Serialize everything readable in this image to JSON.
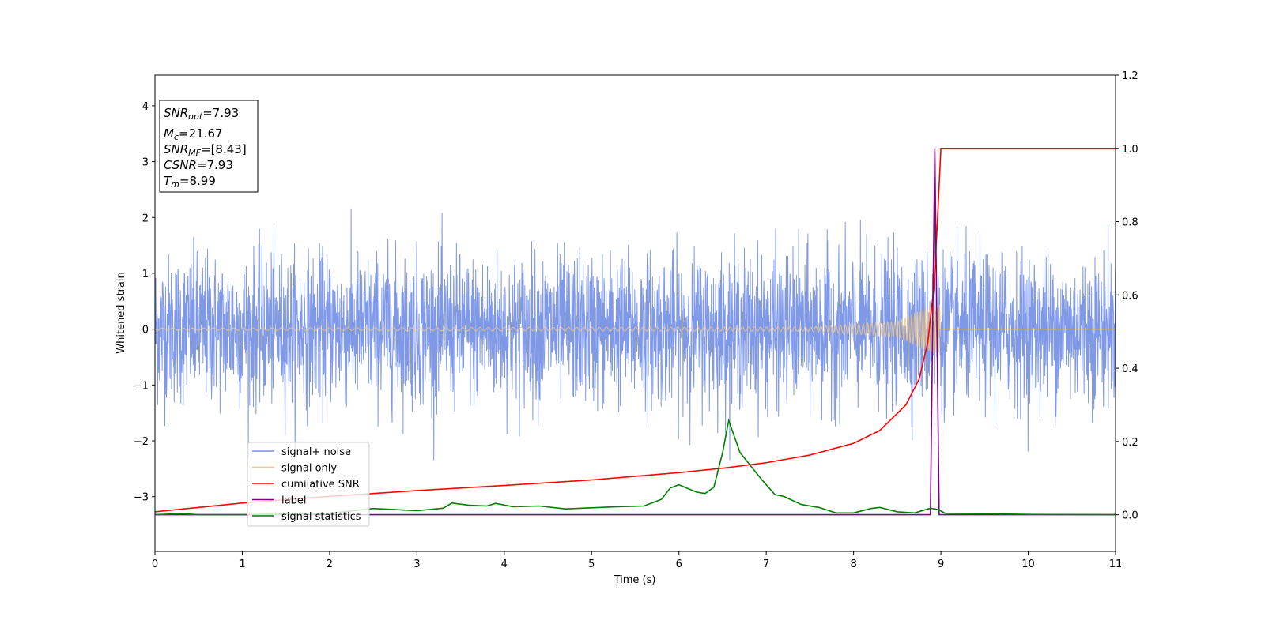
{
  "chart_data": {
    "type": "line",
    "xlabel": "Time (s)",
    "ylabel": "Whitened strain",
    "xlim": [
      0,
      11
    ],
    "ylim_left": [
      -3.98,
      4.55
    ],
    "ylim_right": [
      -0.1,
      1.2
    ],
    "x_ticks": [
      "0",
      "1",
      "2",
      "3",
      "4",
      "5",
      "6",
      "7",
      "8",
      "9",
      "10",
      "11"
    ],
    "y_left_ticks": [
      "4",
      "3",
      "2",
      "1",
      "0",
      "−1",
      "−2",
      "−3"
    ],
    "y_left_tick_values": [
      4,
      3,
      2,
      1,
      0,
      -1,
      -2,
      -3
    ],
    "y_right_ticks": [
      "1.2",
      "1.0",
      "0.8",
      "0.6",
      "0.4",
      "0.2",
      "0.0"
    ],
    "y_right_tick_values": [
      1.2,
      1.0,
      0.8,
      0.6,
      0.4,
      0.2,
      0.0
    ],
    "grid": false,
    "legend_position": "lower-left",
    "series": [
      {
        "name": "signal+ noise",
        "axis": "left",
        "color": "#7994e6",
        "description_values": "gaussian noise, amplitude roughly within ±2, with a few spikes near 2.3 and -2.3",
        "envelope": 1.2
      },
      {
        "name": "signal only",
        "axis": "left",
        "color": "#f5c77a",
        "chirp_end": 8.99,
        "amplitude_points": [
          [
            0,
            0.02
          ],
          [
            7.5,
            0.04
          ],
          [
            8.5,
            0.14
          ],
          [
            8.85,
            0.4
          ],
          [
            8.99,
            0.5
          ]
        ]
      },
      {
        "name": "cumilative SNR",
        "axis": "right",
        "color": "#ff0000",
        "points": [
          [
            0,
            0.008
          ],
          [
            1,
            0.032
          ],
          [
            2,
            0.05
          ],
          [
            3,
            0.066
          ],
          [
            4,
            0.08
          ],
          [
            5,
            0.095
          ],
          [
            6,
            0.115
          ],
          [
            6.5,
            0.127
          ],
          [
            7,
            0.142
          ],
          [
            7.5,
            0.163
          ],
          [
            8,
            0.195
          ],
          [
            8.3,
            0.23
          ],
          [
            8.6,
            0.3
          ],
          [
            8.75,
            0.37
          ],
          [
            8.85,
            0.47
          ],
          [
            8.92,
            0.62
          ],
          [
            8.96,
            0.8
          ],
          [
            9.0,
            1.0
          ],
          [
            11,
            1.0
          ]
        ]
      },
      {
        "name": "label",
        "axis": "right",
        "color": "#800080",
        "points": [
          [
            0,
            0.0
          ],
          [
            8.88,
            0.0
          ],
          [
            8.93,
            1.0
          ],
          [
            8.98,
            0.0
          ],
          [
            11,
            0.0
          ]
        ]
      },
      {
        "name": "signal statistics",
        "axis": "right",
        "color": "#008000",
        "points": [
          [
            0,
            0.0
          ],
          [
            0.3,
            0.003
          ],
          [
            0.5,
            0.0
          ],
          [
            1.0,
            0.0
          ],
          [
            1.5,
            0.002
          ],
          [
            2.0,
            0.004
          ],
          [
            2.5,
            0.017
          ],
          [
            3.0,
            0.011
          ],
          [
            3.3,
            0.018
          ],
          [
            3.4,
            0.032
          ],
          [
            3.6,
            0.026
          ],
          [
            3.8,
            0.024
          ],
          [
            3.9,
            0.031
          ],
          [
            4.1,
            0.022
          ],
          [
            4.4,
            0.024
          ],
          [
            4.7,
            0.016
          ],
          [
            5.0,
            0.019
          ],
          [
            5.3,
            0.022
          ],
          [
            5.6,
            0.024
          ],
          [
            5.8,
            0.042
          ],
          [
            5.9,
            0.073
          ],
          [
            6.0,
            0.082
          ],
          [
            6.1,
            0.072
          ],
          [
            6.2,
            0.062
          ],
          [
            6.3,
            0.058
          ],
          [
            6.4,
            0.075
          ],
          [
            6.5,
            0.17
          ],
          [
            6.57,
            0.257
          ],
          [
            6.7,
            0.17
          ],
          [
            6.8,
            0.14
          ],
          [
            6.95,
            0.095
          ],
          [
            7.1,
            0.055
          ],
          [
            7.2,
            0.05
          ],
          [
            7.4,
            0.028
          ],
          [
            7.6,
            0.02
          ],
          [
            7.8,
            0.005
          ],
          [
            8.0,
            0.005
          ],
          [
            8.2,
            0.017
          ],
          [
            8.3,
            0.02
          ],
          [
            8.5,
            0.008
          ],
          [
            8.7,
            0.005
          ],
          [
            8.88,
            0.018
          ],
          [
            8.97,
            0.014
          ],
          [
            9.05,
            0.004
          ],
          [
            9.5,
            0.003
          ],
          [
            10,
            0.001
          ],
          [
            11,
            0.0
          ]
        ]
      }
    ],
    "annotation": {
      "lines": [
        {
          "sym": "SNR",
          "sub": "opt",
          "value": "=7.93"
        },
        {
          "sym": "M",
          "sub": "c",
          "value": "=21.67"
        },
        {
          "sym": "SNR",
          "sub": "MF",
          "value": "=[8.43]"
        },
        {
          "sym": "CSNR",
          "sub": "",
          "value": "=7.93"
        },
        {
          "sym": "T",
          "sub": "m",
          "value": "=8.99"
        }
      ]
    }
  }
}
